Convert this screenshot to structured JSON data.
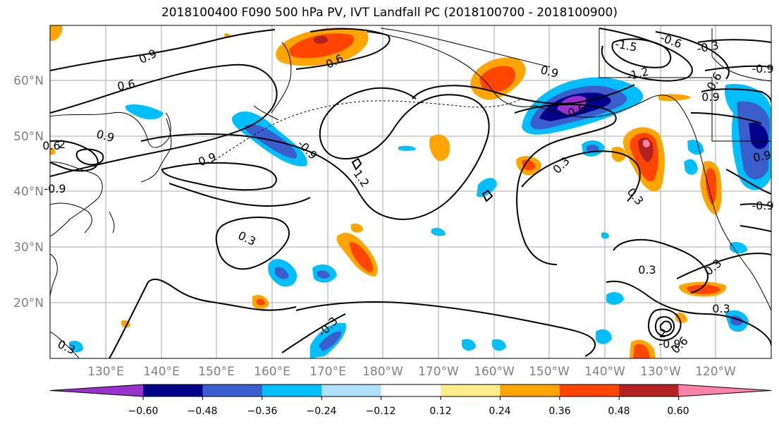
{
  "title": "2018100400 F090 500 hPa PV, IVT Landfall PC (2018100700 - 2018100900)",
  "latitude_labels": [
    "60°N",
    "50°N",
    "40°N",
    "30°N",
    "20°N"
  ],
  "longitude_labels": [
    "130°E",
    "140°E",
    "150°E",
    "160°E",
    "170°E",
    "180°W",
    "170°W",
    "160°W",
    "150°W",
    "140°W",
    "130°W",
    "120°W"
  ],
  "contour_labels": [
    "0.9",
    "0.6",
    "0.6",
    "0.9",
    "-1.5",
    "-0.6",
    "-0.3",
    "-0.9",
    "-1.2",
    "0.6",
    "0.9",
    "0.9",
    "0.6",
    "-0.9",
    "0.6",
    "2",
    "-0.9",
    "-0.9",
    "1.2",
    "0.3",
    "0.3",
    "-0.9",
    "0.3",
    "0.3",
    "0.3",
    "0.3",
    "-0.3",
    "-0.9",
    "0.6",
    "0.3",
    "0.9",
    "2"
  ],
  "colorbar": {
    "tick_labels": [
      "−0.60",
      "−0.48",
      "−0.36",
      "−0.24",
      "−0.12",
      "0.12",
      "0.24",
      "0.36",
      "0.48",
      "0.60"
    ],
    "colors": [
      "#9932CC",
      "#00008B",
      "#3A5FCD",
      "#00BFFF",
      "#B0E2FF",
      "#FFFFFF",
      "#FFEC8B",
      "#FFA500",
      "#FF4500",
      "#B22222",
      "#FF82AB"
    ]
  }
}
